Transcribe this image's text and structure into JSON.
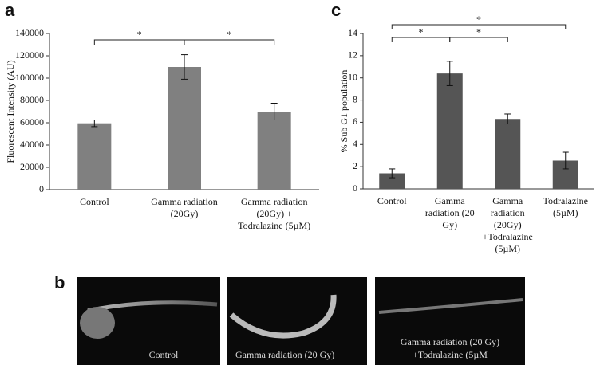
{
  "chart_data": [
    {
      "type": "bar",
      "panel": "a",
      "ylabel": "Fluorescent Intensity (AU)",
      "categories": [
        [
          "Control"
        ],
        [
          "Gamma radiation",
          "(20Gy)"
        ],
        [
          "Gamma radiation",
          "(20Gy) +",
          "Todralazine (5µM)"
        ]
      ],
      "values": [
        59500,
        110000,
        70000
      ],
      "errors": [
        3000,
        11000,
        7500
      ],
      "color": "#808080",
      "ylim": [
        0,
        140000
      ],
      "yticks": [
        0,
        20000,
        40000,
        60000,
        80000,
        100000,
        120000,
        140000
      ],
      "significance": [
        {
          "from": 0,
          "to": 1,
          "label": "*"
        },
        {
          "from": 1,
          "to": 2,
          "label": "*"
        }
      ]
    },
    {
      "type": "bar",
      "panel": "c",
      "ylabel": "% Sub G1 population",
      "categories": [
        [
          "Control"
        ],
        [
          "Gamma",
          "radiation (20",
          "Gy)"
        ],
        [
          "Gamma",
          "radiation",
          "(20Gy)",
          "+Todralazine",
          "(5µM)"
        ],
        [
          "Todralazine",
          "(5µM)"
        ]
      ],
      "values": [
        1.4,
        10.4,
        6.3,
        2.55
      ],
      "errors": [
        0.4,
        1.1,
        0.45,
        0.75
      ],
      "color": "#555555",
      "ylim": [
        0,
        14
      ],
      "yticks": [
        0,
        2,
        4,
        6,
        8,
        10,
        12,
        14
      ],
      "significance": [
        {
          "from": 0,
          "to": 1,
          "label": "*"
        },
        {
          "from": 1,
          "to": 2,
          "label": "*"
        },
        {
          "from": 0,
          "to": 3,
          "label": "*"
        }
      ]
    }
  ],
  "panel_b": {
    "label": "b",
    "captions": [
      [
        "Control"
      ],
      [
        "Gamma radiation (20 Gy)"
      ],
      [
        "Gamma radiation (20 Gy)",
        "+Todralazine (5µM"
      ]
    ]
  }
}
